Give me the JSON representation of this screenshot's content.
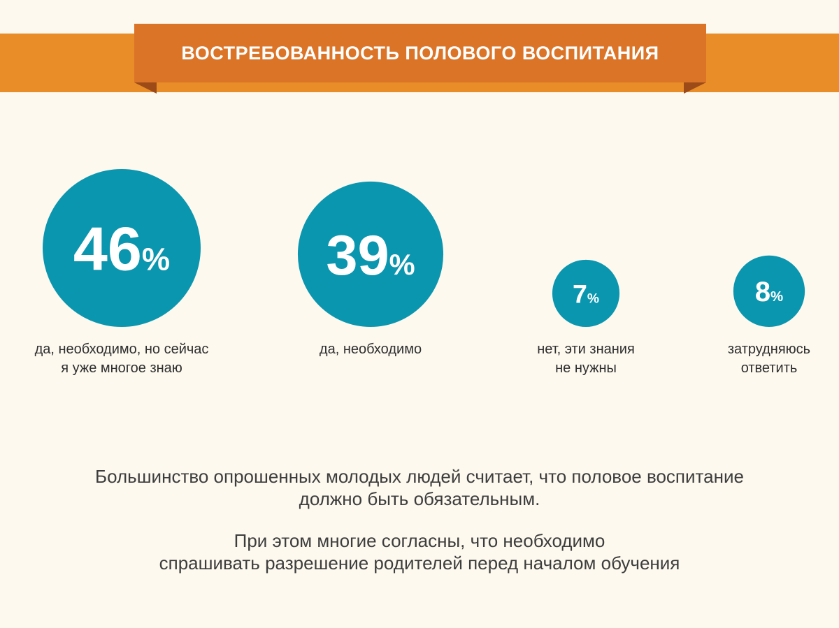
{
  "header": {
    "title": "ВОСТРЕБОВАННОСТЬ ПОЛОВОГО ВОСПИТАНИЯ"
  },
  "colors": {
    "circle": "#0b96af",
    "band": "#e88d28",
    "ribbon": "#dc7428",
    "ribbon_fold": "#9c4a17",
    "background": "#fdf9ef",
    "label_text": "#2e2e2e"
  },
  "chart_data": {
    "type": "pie",
    "title": "ВОСТРЕБОВАННОСТЬ ПОЛОВОГО ВОСПИТАНИЯ",
    "unit": "%",
    "categories": [
      "да, необходимо, но сейчас я уже многое знаю",
      "да, необходимо",
      "нет, эти знания не нужны",
      "затрудняюсь ответить"
    ],
    "values": [
      46,
      39,
      7,
      8
    ],
    "items": [
      {
        "value": 46,
        "number": "46",
        "unit": "%",
        "label_lines": [
          "да, необходимо, но сейчас",
          "я уже многое знаю"
        ]
      },
      {
        "value": 39,
        "number": "39",
        "unit": "%",
        "label_lines": [
          "да, необходимо"
        ]
      },
      {
        "value": 7,
        "number": "7",
        "unit": "%",
        "label_lines": [
          "нет, эти знания",
          "не нужны"
        ]
      },
      {
        "value": 8,
        "number": "8",
        "unit": "%",
        "label_lines": [
          "затрудняюсь",
          "ответить"
        ]
      }
    ]
  },
  "footer": {
    "line1": "Большинство опрошенных молодых людей считает, что половое воспитание",
    "line2": "должно быть обязательным.",
    "line3": "При этом многие согласны, что необходимо",
    "line4": "спрашивать разрешение родителей перед началом обучения"
  }
}
